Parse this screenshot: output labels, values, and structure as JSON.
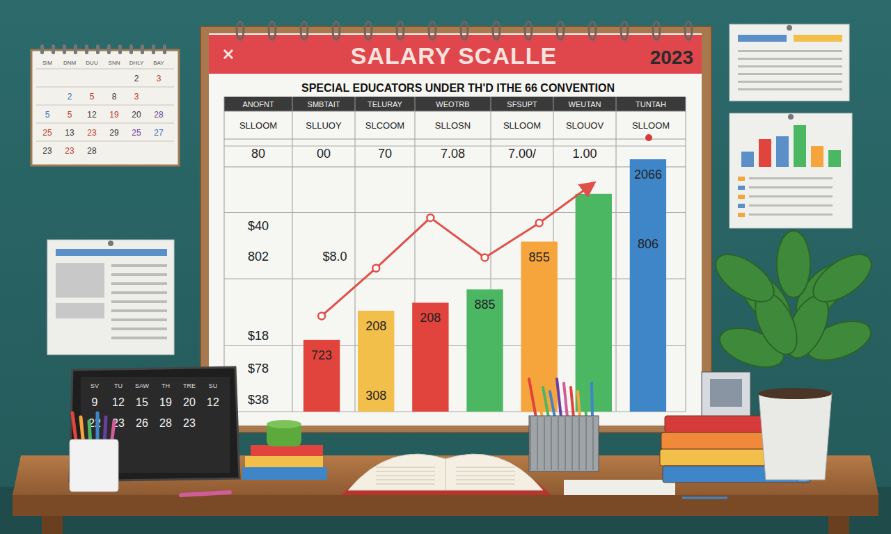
{
  "board": {
    "title": "SALARY SCALLE",
    "year": "2023",
    "subtitle": "SPECIAL EDUCATORS UNDER TH'D ITHE 66 CONVENTION"
  },
  "table": {
    "header": [
      "ANOFNT",
      "SMBTAIT",
      "TELURAY",
      "WEOTRB",
      "SFSUPT",
      "WEUTAN",
      "TUNTAH"
    ],
    "rows": [
      [
        "SLLOOM",
        "SLLUOY",
        "SLCOOM",
        "SLLOSN",
        "SLLOOM",
        "SLOUOV",
        "SLLOOM"
      ],
      [
        "80",
        "00",
        "70",
        "7.08",
        "7.00/",
        "1.00",
        null
      ]
    ]
  },
  "side_labels": [
    "$40",
    "802",
    "$8.0",
    "$18",
    "$78",
    "$38"
  ],
  "bar_texts": [
    [
      "723"
    ],
    [
      "208",
      "308"
    ],
    [
      "208"
    ],
    [
      "885"
    ],
    [
      "855"
    ],
    [],
    [
      "2066",
      "806"
    ]
  ],
  "wall_calendar": {
    "header": [
      "SIM",
      "DNM",
      "DUU",
      "SNN",
      "DHLY",
      "BAY"
    ],
    "cells": [
      [
        null,
        null,
        null,
        null,
        "2",
        "3"
      ],
      [
        null,
        "2",
        "5",
        "8",
        "3",
        null
      ],
      [
        "5",
        "5",
        "12",
        "19",
        "20",
        "28"
      ],
      [
        "25",
        "13",
        "23",
        "29",
        "25",
        "27"
      ],
      [
        "23",
        "23",
        "28",
        null,
        null,
        null
      ]
    ]
  },
  "tablet_calendar": {
    "header": [
      "SV",
      "TU",
      "SAW",
      "TH",
      "TRE",
      "SU"
    ],
    "cells": [
      [
        "9",
        "12",
        "15",
        "19",
        "20",
        "12"
      ],
      [
        "22",
        "23",
        "26",
        "28",
        "23",
        null
      ]
    ]
  },
  "chart_data": {
    "type": "bar",
    "categories": [
      null,
      null,
      null,
      null,
      null,
      null,
      null
    ],
    "ylim": [
      0,
      100
    ],
    "yticks": [
      0,
      25,
      50,
      75,
      100
    ],
    "grid": true,
    "tick_labels": false,
    "series": [
      {
        "type": "bar",
        "colors": [
          "#e0443c",
          "#f2c04a",
          "#e0443c",
          "#4cb763",
          "#f5a53b",
          "#4cb763",
          "#3f86c9"
        ],
        "values": [
          27,
          38,
          41,
          46,
          64,
          82,
          95
        ]
      },
      {
        "type": "line",
        "color": "#e0504a",
        "marker": "circle",
        "values": [
          36,
          54,
          73,
          58,
          71,
          86,
          null
        ]
      }
    ]
  }
}
